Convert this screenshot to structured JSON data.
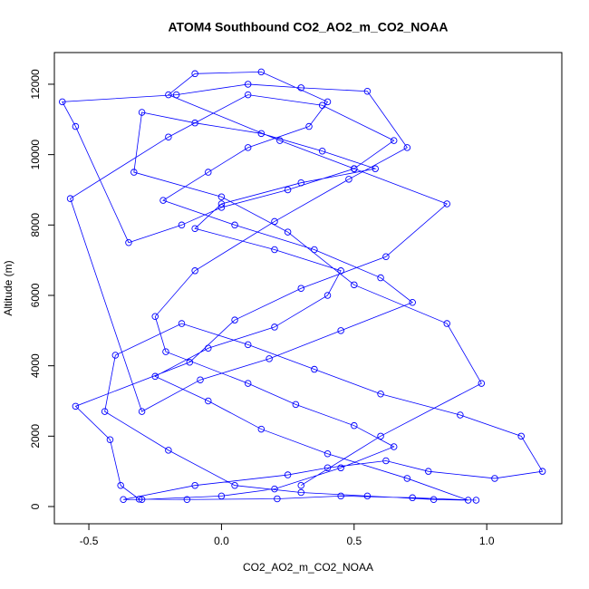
{
  "chart_data": {
    "type": "scatter",
    "lines": true,
    "title": "ATOM4 Southbound CO2_AO2_m_CO2_NOAA",
    "x_label": "CO2_AO2_m_CO2_NOAA",
    "y_label": "Altitude (m)",
    "color": "#0000ff",
    "xlim": [
      -0.63,
      1.283
    ],
    "ylim": [
      -489,
      12900
    ],
    "xticks": [
      -0.5,
      {
        "value": 0,
        "label": "0.0"
      },
      0.5,
      {
        "value": 1,
        "label": "1.0"
      }
    ],
    "yticks": [
      0,
      2000,
      4000,
      6000,
      8000,
      10000,
      12000
    ],
    "x": [
      0.96,
      0.72,
      0.45,
      0.21,
      -0.13,
      -0.31,
      -0.38,
      -0.42,
      -0.55,
      -0.12,
      0.05,
      0.3,
      0.62,
      0.85,
      0.5,
      0.22,
      -0.2,
      -0.1,
      0.15,
      0.4,
      0.33,
      0.1,
      -0.05,
      -0.22,
      0.05,
      0.35,
      0.6,
      0.72,
      0.45,
      0.18,
      -0.08,
      -0.3,
      -0.57,
      -0.2,
      0.1,
      0.38,
      0.65,
      0.5,
      0.25,
      0.0,
      -0.15,
      -0.35,
      -0.55,
      -0.6,
      -0.17,
      0.1,
      0.3,
      0.55,
      0.7,
      0.48,
      0.2,
      -0.1,
      -0.25,
      -0.21,
      0.1,
      0.28,
      0.5,
      0.65,
      0.45,
      0.2,
      0.0,
      -0.3,
      -0.37,
      -0.1,
      0.25,
      0.4,
      0.62,
      0.78,
      1.03,
      1.21,
      1.13,
      0.9,
      0.6,
      0.35,
      0.1,
      -0.15,
      -0.4,
      -0.44,
      -0.2,
      0.05,
      0.3,
      0.55,
      0.8,
      0.93,
      0.7,
      0.4,
      0.15,
      -0.05,
      -0.25,
      -0.05,
      0.2,
      0.4,
      0.45,
      0.2,
      -0.1,
      0.0,
      0.3,
      0.58,
      0.38,
      0.15,
      -0.1,
      -0.3,
      -0.33,
      0.0,
      0.25,
      0.5,
      0.85,
      0.98,
      0.6,
      0.3
    ],
    "values": [
      180,
      250,
      300,
      220,
      200,
      210,
      600,
      1900,
      2850,
      4100,
      5300,
      6200,
      7100,
      8600,
      9600,
      10400,
      11700,
      12300,
      12350,
      11500,
      10800,
      10200,
      9500,
      8700,
      8000,
      7300,
      6500,
      5800,
      5000,
      4200,
      3600,
      2700,
      8750,
      10500,
      11700,
      11400,
      10400,
      9600,
      9000,
      8500,
      8000,
      7500,
      10800,
      11500,
      11700,
      12000,
      11900,
      11800,
      10200,
      9300,
      8100,
      6700,
      5400,
      4400,
      3500,
      2900,
      2300,
      1700,
      1100,
      500,
      300,
      200,
      200,
      600,
      900,
      1100,
      1300,
      1000,
      800,
      1000,
      2000,
      2600,
      3200,
      3900,
      4600,
      5200,
      4300,
      2700,
      1600,
      600,
      400,
      300,
      200,
      180,
      800,
      1500,
      2200,
      3000,
      3700,
      4500,
      5100,
      6000,
      6700,
      7300,
      7900,
      8600,
      9200,
      9600,
      10100,
      10600,
      10900,
      11200,
      9500,
      8800,
      7800,
      6300,
      5200,
      3500,
      2000,
      600
    ]
  }
}
